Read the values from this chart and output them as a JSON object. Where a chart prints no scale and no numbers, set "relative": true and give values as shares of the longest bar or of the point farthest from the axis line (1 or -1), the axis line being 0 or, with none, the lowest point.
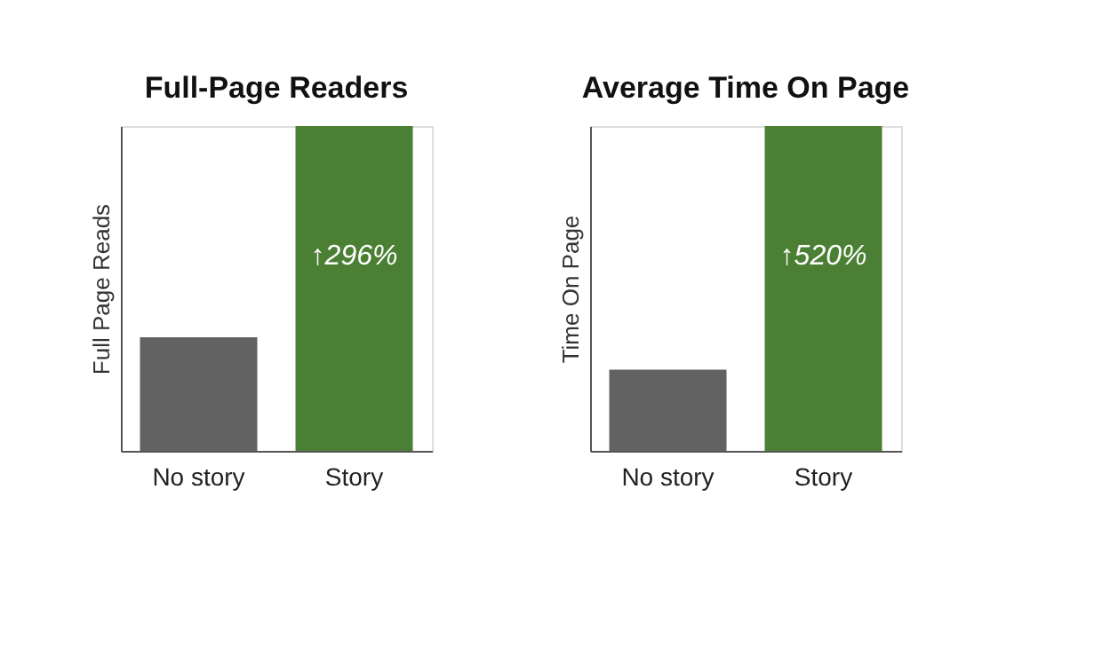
{
  "chart_data": [
    {
      "type": "bar",
      "title": "Full-Page Readers",
      "ylabel": "Full Page Reads",
      "categories": [
        "No story",
        "Story"
      ],
      "values": [
        0.35,
        1
      ],
      "colors": [
        "#626262",
        "#4b7f34"
      ],
      "relative": true,
      "annotations": [
        "↑296%"
      ]
    },
    {
      "type": "bar",
      "title": "Average Time On Page",
      "ylabel": "Time On Page",
      "categories": [
        "No story",
        "Story"
      ],
      "values": [
        0.25,
        1
      ],
      "colors": [
        "#626262",
        "#4b7f34"
      ],
      "relative": true,
      "annotations": [
        "↑520%"
      ]
    }
  ]
}
